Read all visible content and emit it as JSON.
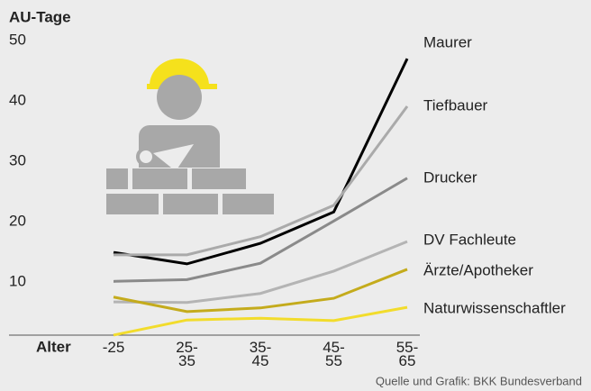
{
  "chart_data": {
    "type": "line",
    "title": "AU-Tage",
    "x_label": "Alter",
    "source": "Quelle und Grafik: BKK Bundesverband",
    "categories": [
      "-25",
      "25-35",
      "35-45",
      "45-55",
      "55-65"
    ],
    "ylim": [
      0,
      50
    ],
    "yticks": [
      10,
      20,
      30,
      40,
      50
    ],
    "series": [
      {
        "name": "Maurer",
        "color": "#000000",
        "values": [
          14.9,
          13.0,
          16.4,
          21.6,
          47.0
        ]
      },
      {
        "name": "Tiefbauer",
        "color": "#aaaaaa",
        "values": [
          14.5,
          14.5,
          17.5,
          22.7,
          39.1
        ]
      },
      {
        "name": "Drucker",
        "color": "#8a8a8a",
        "values": [
          10.1,
          10.4,
          13.1,
          20.1,
          27.2
        ]
      },
      {
        "name": "DV Fachleute",
        "color": "#b4b4b4",
        "values": [
          6.7,
          6.6,
          8.1,
          11.8,
          16.7
        ]
      },
      {
        "name": "Ärzte/Apotheker",
        "color": "#c4ab1c",
        "values": [
          7.5,
          5.1,
          5.7,
          7.3,
          12.1
        ]
      },
      {
        "name": "Naturwissenschaftler",
        "color": "#f2dc2c",
        "values": [
          1.2,
          3.7,
          4.0,
          3.6,
          5.8
        ]
      }
    ]
  }
}
